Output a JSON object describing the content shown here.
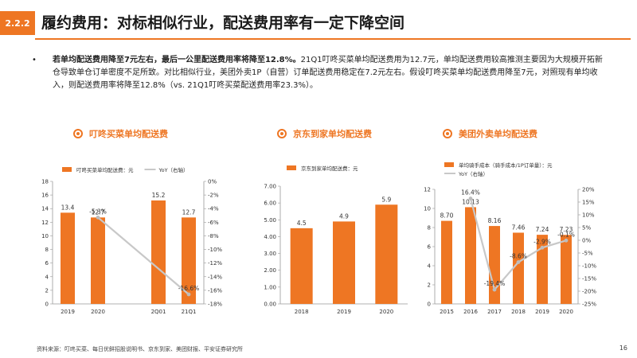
{
  "header": {
    "section_number": "2.2.2",
    "title": "履约费用：对标相似行业，配送费用率有一定下降空间"
  },
  "bullet": {
    "marker": "•",
    "bold_text": "若单均配送费用降至7元左右，最后一公里配送费用率将降至12.8%。",
    "body_text": "21Q1叮咚买菜单均配送费用为12.7元，单均配送费用较高推测主要因为大规模开拓新仓导致单仓订单密度不足所致。对比相似行业，美团外卖1P（自营）订单配送费用稳定在7.2元左右。假设叮咚买菜单均配送费用降至7元，对照现有单均收入，则配送费用率将降至12.8%（vs. 21Q1叮咚买菜配送费用率23.3%）。"
  },
  "colors": {
    "accent": "#ee7623",
    "line": "#c8c8c8"
  },
  "chart_data": [
    {
      "type": "bar",
      "heading": "叮咚买菜单均配送费",
      "categories": [
        "2019",
        "2020",
        "",
        "2Q01",
        "21Q1"
      ],
      "series": [
        {
          "name": "叮咚买菜单均配送费：元",
          "kind": "bar",
          "axis": "left",
          "values": [
            13.4,
            12.7,
            null,
            15.2,
            12.7
          ],
          "labels": [
            "13.4",
            "12.7",
            "",
            "15.2",
            "12.7"
          ]
        },
        {
          "name": "YoY（右轴）",
          "kind": "line",
          "axis": "right",
          "values": [
            null,
            -5.3,
            null,
            null,
            -16.6
          ],
          "labels": [
            "",
            "-5.3%",
            "",
            "",
            "-16.6%"
          ]
        }
      ],
      "ylim": [
        0,
        18
      ],
      "yticks": [
        "0",
        "2",
        "4",
        "6",
        "8",
        "10",
        "12",
        "14",
        "16",
        "18"
      ],
      "y2lim": [
        -18,
        0
      ],
      "y2ticks": [
        "0%",
        "-2%",
        "-4%",
        "-6%",
        "-8%",
        "-10%",
        "-12%",
        "-14%",
        "-16%",
        "-18%"
      ]
    },
    {
      "type": "bar",
      "heading": "京东到家单均配送费",
      "categories": [
        "2018",
        "2019",
        "2020"
      ],
      "series": [
        {
          "name": "京东到家单均配送费：元",
          "kind": "bar",
          "axis": "left",
          "values": [
            4.5,
            4.9,
            5.9
          ],
          "labels": [
            "4.5",
            "4.9",
            "5.9"
          ]
        }
      ],
      "ylim": [
        0,
        7
      ],
      "yticks": [
        "0.00",
        "1.00",
        "2.00",
        "3.00",
        "4.00",
        "5.00",
        "6.00",
        "7.00"
      ]
    },
    {
      "type": "bar",
      "heading": "美团外卖单均配送费",
      "categories": [
        "2015",
        "2016",
        "2017",
        "2018",
        "2019",
        "2020"
      ],
      "series": [
        {
          "name": "单均骑手成本（骑手成本/1P订单量）：元",
          "kind": "bar",
          "axis": "left",
          "values": [
            8.7,
            10.13,
            8.16,
            7.46,
            7.24,
            7.23
          ],
          "labels": [
            "8.70",
            "10.13",
            "8.16",
            "7.46",
            "7.24",
            "7.23"
          ]
        },
        {
          "name": "YoY（右轴）",
          "kind": "line",
          "axis": "right",
          "values": [
            null,
            16.4,
            -19.4,
            -8.6,
            -2.9,
            -0.1
          ],
          "labels": [
            "",
            "16.4%",
            "-19.4%",
            "-8.6%",
            "-2.9%",
            "-0.1%"
          ]
        }
      ],
      "ylim": [
        0,
        12
      ],
      "yticks": [
        "0",
        "2",
        "4",
        "6",
        "8",
        "10",
        "12"
      ],
      "y2lim": [
        -25,
        20
      ],
      "y2ticks": [
        "20%",
        "15%",
        "10%",
        "5%",
        "0%",
        "-5%",
        "-10%",
        "-15%",
        "-20%",
        "-25%"
      ]
    }
  ],
  "footer": {
    "source": "资料来源：叮咚买菜、每日优鲜招股说明书、京东到家、美团财报、平安证券研究所",
    "page": "16"
  }
}
